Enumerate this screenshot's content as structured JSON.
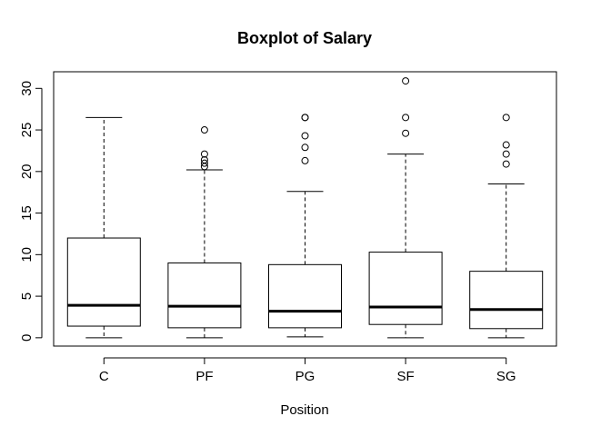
{
  "chart_data": {
    "type": "boxplot",
    "title": "Boxplot of Salary",
    "xlabel": "Position",
    "ylabel": "",
    "ylim": [
      -1,
      32
    ],
    "yticks": [
      0,
      5,
      10,
      15,
      20,
      25,
      30
    ],
    "grid": false,
    "categories": [
      "C",
      "PF",
      "PG",
      "SF",
      "SG"
    ],
    "boxes": [
      {
        "category": "C",
        "whisker_low": 0.0,
        "q1": 1.4,
        "median": 3.9,
        "q3": 12.0,
        "whisker_high": 26.5,
        "outliers": []
      },
      {
        "category": "PF",
        "whisker_low": 0.0,
        "q1": 1.2,
        "median": 3.8,
        "q3": 9.0,
        "whisker_high": 20.2,
        "outliers": [
          20.6,
          21.0,
          21.4,
          22.1,
          25.0
        ]
      },
      {
        "category": "PG",
        "whisker_low": 0.1,
        "q1": 1.2,
        "median": 3.2,
        "q3": 8.8,
        "whisker_high": 17.6,
        "outliers": [
          21.3,
          22.9,
          24.3,
          26.5,
          26.5
        ]
      },
      {
        "category": "SF",
        "whisker_low": 0.0,
        "q1": 1.6,
        "median": 3.7,
        "q3": 10.3,
        "whisker_high": 22.1,
        "outliers": [
          24.6,
          26.5,
          30.9
        ]
      },
      {
        "category": "SG",
        "whisker_low": 0.0,
        "q1": 1.1,
        "median": 3.4,
        "q3": 8.0,
        "whisker_high": 18.5,
        "outliers": [
          20.9,
          22.1,
          23.2,
          26.5
        ]
      }
    ]
  }
}
